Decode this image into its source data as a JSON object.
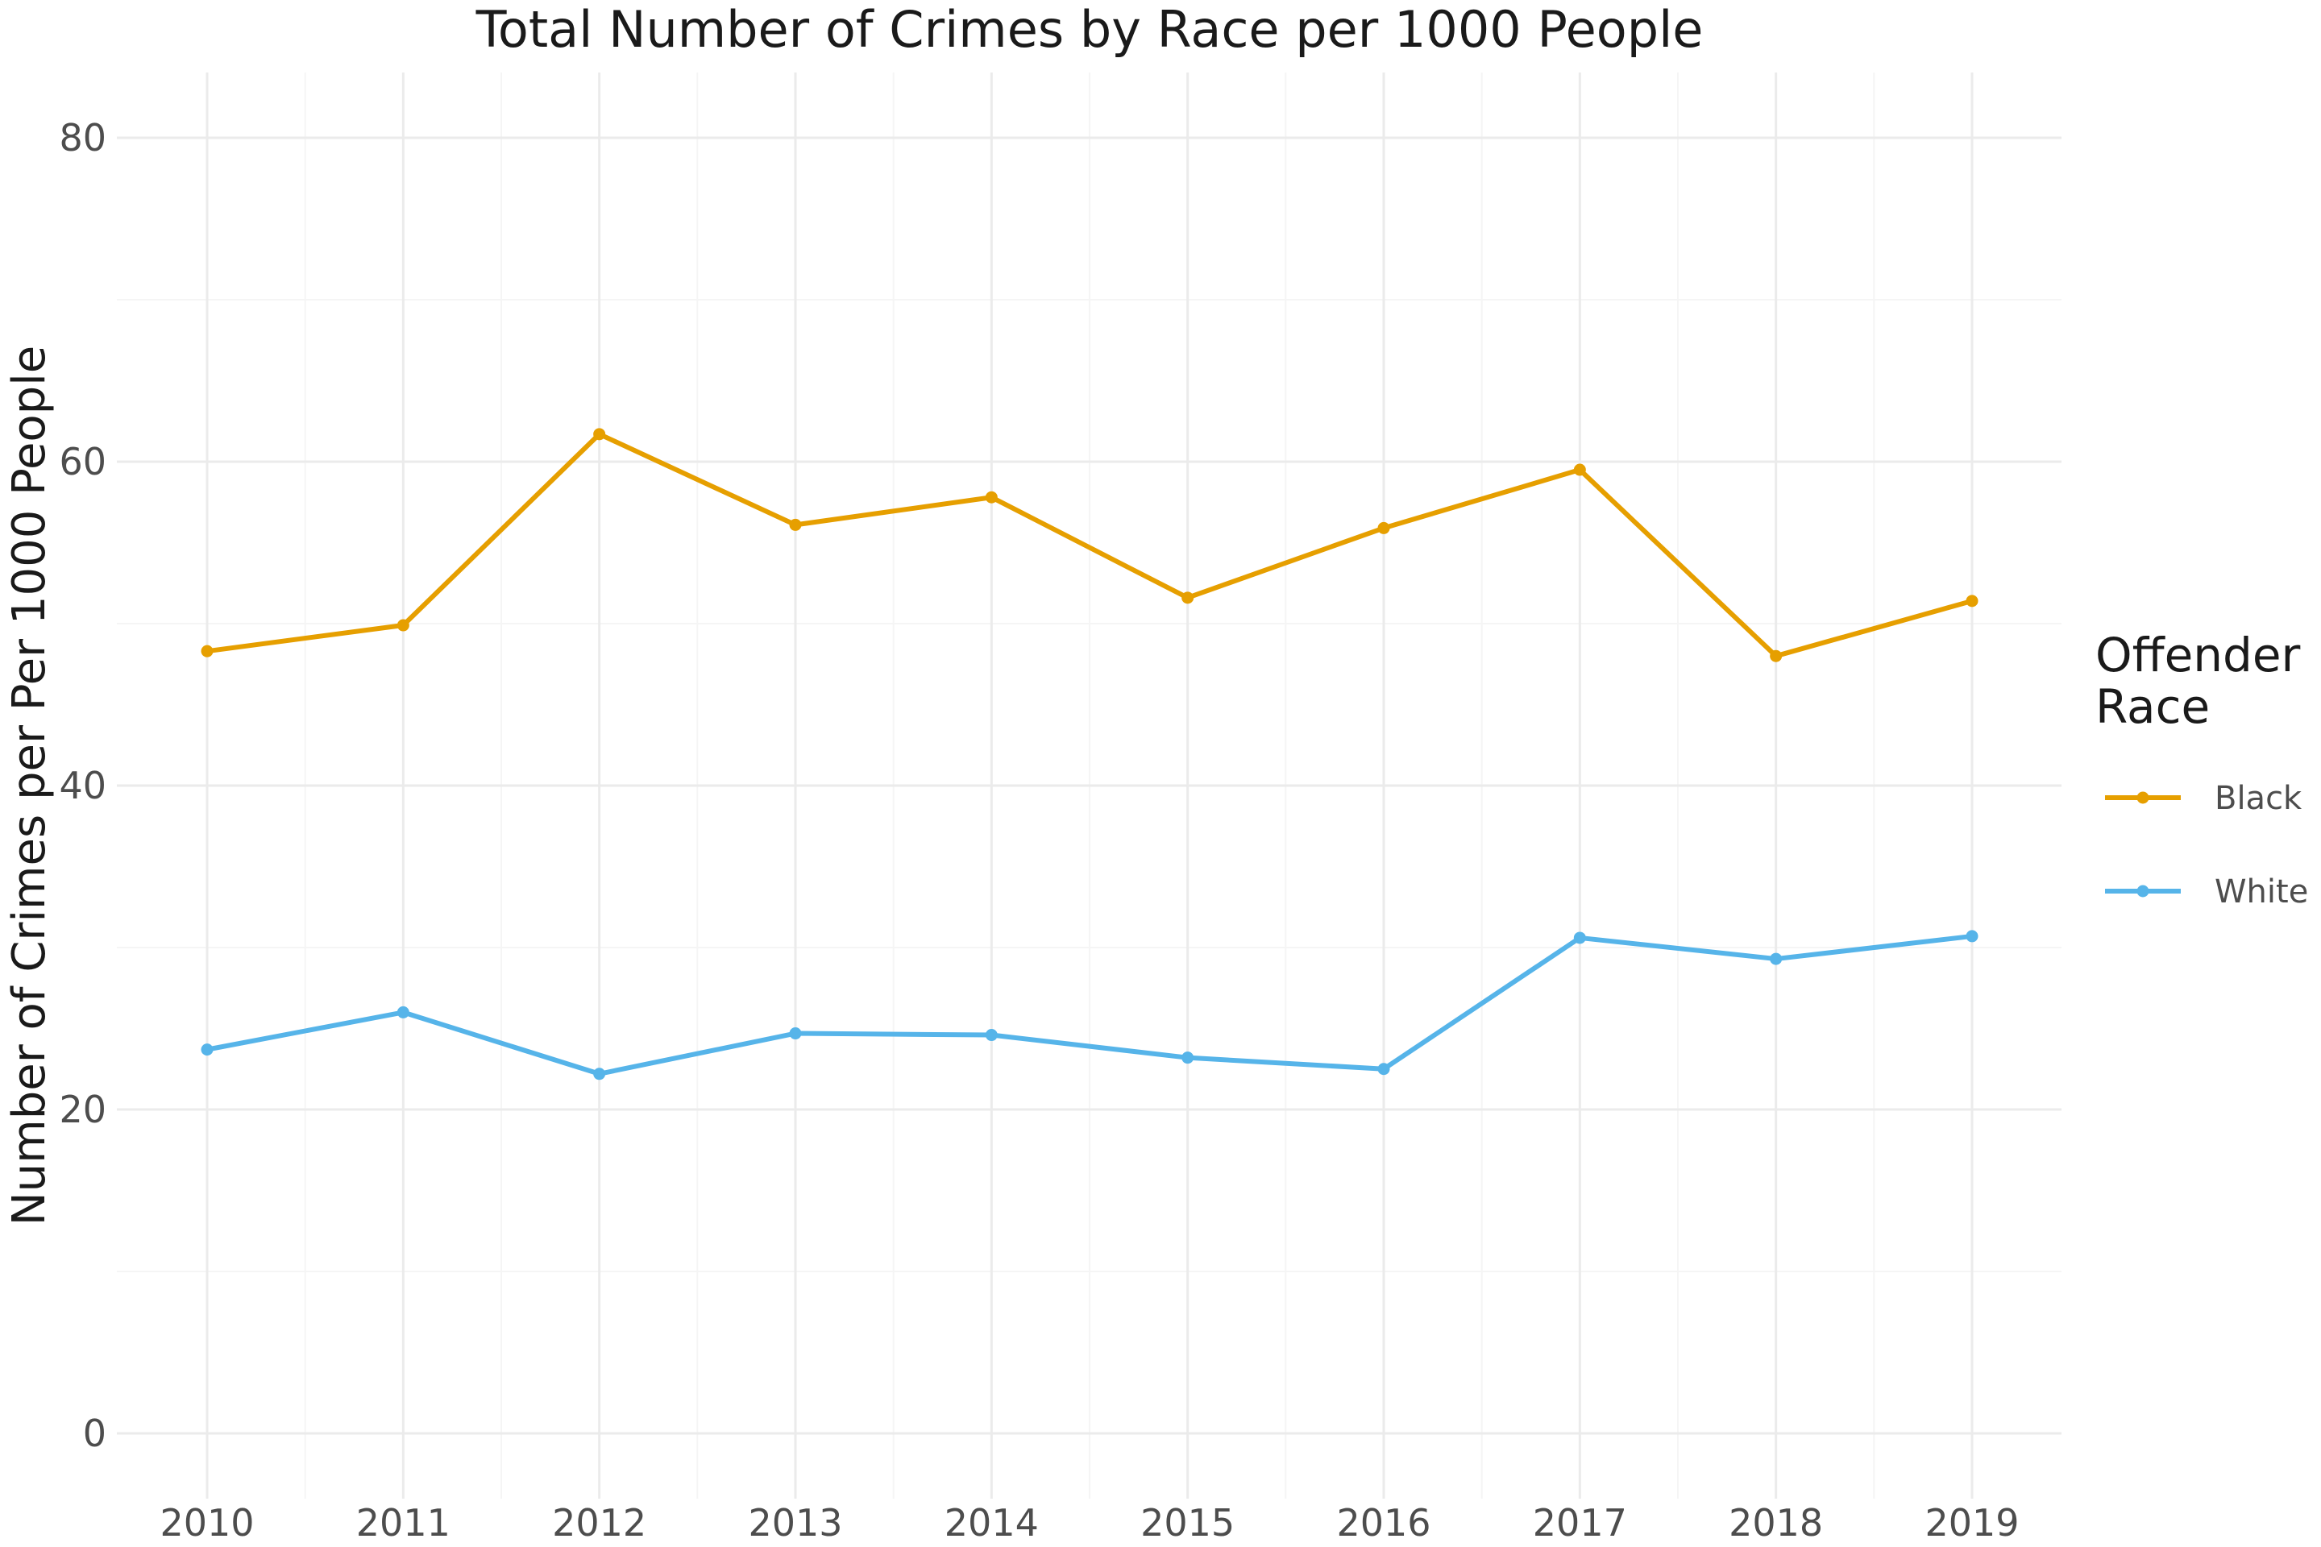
{
  "chart_data": {
    "type": "line",
    "title": "Total Number of Crimes by Race per 1000 People",
    "xlabel": "",
    "ylabel": "Number of Crimes per Per 1000 People",
    "x": [
      "2010",
      "2011",
      "2012",
      "2013",
      "2014",
      "2015",
      "2016",
      "2017",
      "2018",
      "2019"
    ],
    "ylim": [
      -3,
      84
    ],
    "yticks": [
      "0",
      "20",
      "40",
      "60",
      "80"
    ],
    "grid": true,
    "legend": {
      "title_lines": [
        "Offender",
        "Race"
      ],
      "position": "right"
    },
    "series": [
      {
        "name": "Black",
        "color": "#E69F00",
        "values": [
          48.3,
          49.9,
          61.7,
          56.1,
          57.8,
          51.6,
          55.9,
          59.5,
          48.0,
          51.4
        ]
      },
      {
        "name": "White",
        "color": "#56B4E9",
        "values": [
          23.7,
          26.0,
          22.2,
          24.7,
          24.6,
          23.2,
          22.5,
          30.6,
          29.3,
          30.7
        ]
      }
    ]
  }
}
